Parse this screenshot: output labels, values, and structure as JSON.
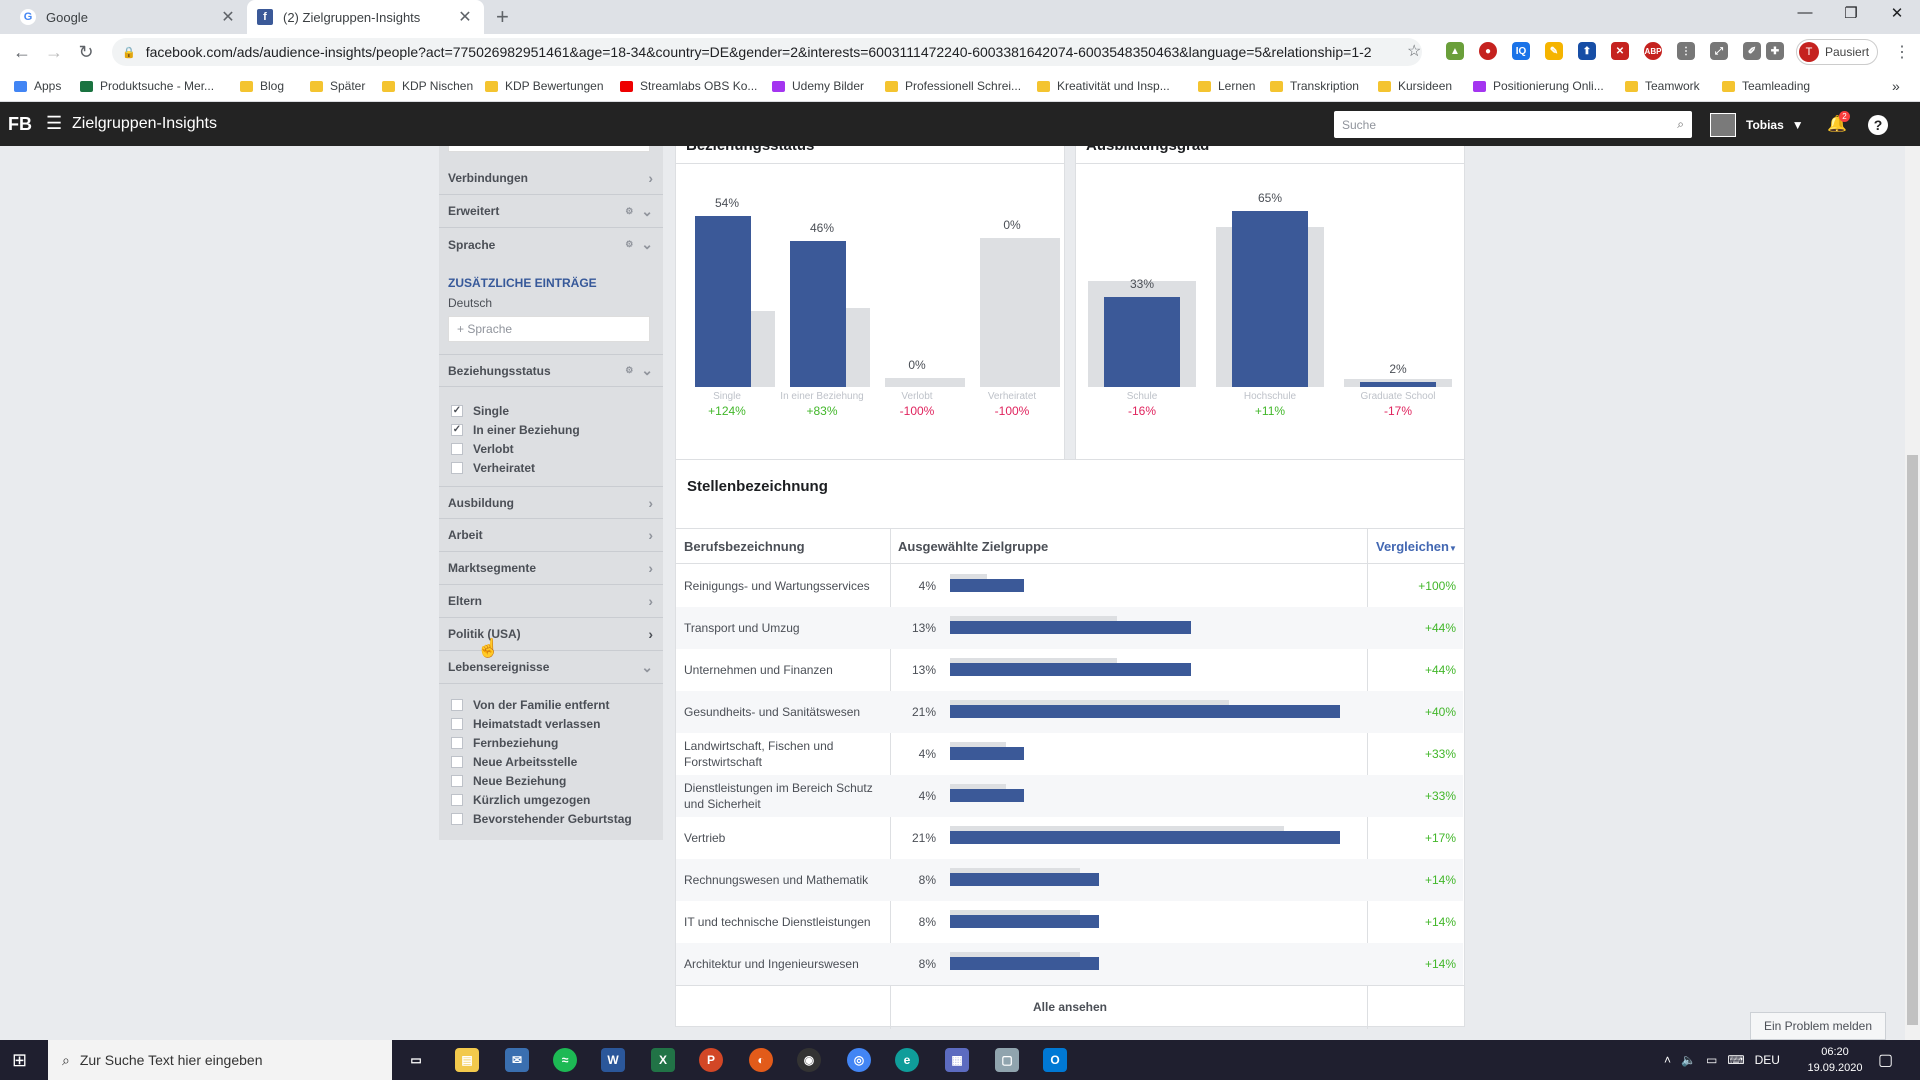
{
  "browser": {
    "tabs": [
      {
        "title": "Google",
        "fav": "G"
      },
      {
        "title": "(2) Zielgruppen-Insights",
        "fav": "f"
      }
    ],
    "url": "facebook.com/ads/audience-insights/people?act=775026982951461&age=18-34&country=DE&gender=2&interests=6003111472240-6003381642074-6003548350463&language=5&relationship=1-2",
    "profile_name": "Pausiert",
    "profile_initial": "T",
    "bookmarks": [
      "Apps",
      "Produktsuche - Mer...",
      "Blog",
      "Später",
      "KDP Nischen",
      "KDP Bewertungen",
      "Streamlabs OBS Ko...",
      "Udemy Bilder",
      "Professionell Schrei...",
      "Kreativität und Insp...",
      "Lernen",
      "Transkription",
      "Kursideen",
      "Positionierung Onli...",
      "Teamwork",
      "Teamleading"
    ]
  },
  "fb": {
    "logo": "FB",
    "title": "Zielgruppen-Insights",
    "search_placeholder": "Suche",
    "user": "Tobias",
    "notif_count": "2"
  },
  "sidebar": {
    "rows_top": [
      "Verbindungen",
      "Erweitert",
      "Sprache"
    ],
    "zusatz_title": "ZUSÄTZLICHE EINTRÄGE",
    "zusatz_value": "Deutsch",
    "zusatz_placeholder": "+ Sprache",
    "beziehung_label": "Beziehungsstatus",
    "beziehung_options": [
      {
        "label": "Single",
        "checked": true
      },
      {
        "label": "In einer Beziehung",
        "checked": true
      },
      {
        "label": "Verlobt",
        "checked": false
      },
      {
        "label": "Verheiratet",
        "checked": false
      }
    ],
    "rows_mid": [
      "Ausbildung",
      "Arbeit",
      "Marktsegmente",
      "Eltern",
      "Politik (USA)"
    ],
    "leben_label": "Lebensereignisse",
    "leben_options": [
      "Von der Familie entfernt",
      "Heimatstadt verlassen",
      "Fernbeziehung",
      "Neue Arbeitsstelle",
      "Neue Beziehung",
      "Kürzlich umgezogen",
      "Bevorstehender Geburtstag"
    ]
  },
  "chart_data": [
    {
      "type": "bar",
      "title": "Beziehungsstatus",
      "categories": [
        "Single",
        "In einer Beziehung",
        "Verlobt",
        "Verheiratet"
      ],
      "values": [
        54,
        46,
        0,
        0
      ],
      "baseline": [
        24,
        25,
        3,
        47
      ],
      "labels": [
        "54%",
        "46%",
        "0%",
        "0%"
      ],
      "index": [
        "+124%",
        "+83%",
        "-100%",
        "-100%"
      ],
      "ylim": [
        0,
        60
      ]
    },
    {
      "type": "bar",
      "title": "Ausbildungsgrad",
      "categories": [
        "Schule",
        "Hochschule",
        "Graduate School"
      ],
      "values": [
        33,
        65,
        2
      ],
      "baseline": [
        39,
        59,
        3
      ],
      "labels": [
        "33%",
        "65%",
        "2%"
      ],
      "index": [
        "-16%",
        "+11%",
        "-17%"
      ],
      "ylim": [
        0,
        70
      ]
    },
    {
      "type": "table",
      "title": "Stellenbezeichnung",
      "columns": [
        "Berufsbezeichnung",
        "Ausgewählte Zielgruppe",
        "Vergleichen"
      ],
      "rows": [
        {
          "name": "Reinigungs- und Wartungsservices",
          "pct": "4%",
          "value": 4,
          "baseline": 2,
          "index": "+100%"
        },
        {
          "name": "Transport und Umzug",
          "pct": "13%",
          "value": 13,
          "baseline": 9,
          "index": "+44%"
        },
        {
          "name": "Unternehmen und Finanzen",
          "pct": "13%",
          "value": 13,
          "baseline": 9,
          "index": "+44%"
        },
        {
          "name": "Gesundheits- und Sanitätswesen",
          "pct": "21%",
          "value": 21,
          "baseline": 15,
          "index": "+40%"
        },
        {
          "name": "Landwirtschaft, Fischen und Forstwirtschaft",
          "pct": "4%",
          "value": 4,
          "baseline": 3,
          "index": "+33%"
        },
        {
          "name": "Dienstleistungen im Bereich Schutz und Sicherheit",
          "pct": "4%",
          "value": 4,
          "baseline": 3,
          "index": "+33%"
        },
        {
          "name": "Vertrieb",
          "pct": "21%",
          "value": 21,
          "baseline": 18,
          "index": "+17%"
        },
        {
          "name": "Rechnungswesen und Mathematik",
          "pct": "8%",
          "value": 8,
          "baseline": 7,
          "index": "+14%"
        },
        {
          "name": "IT und technische Dienstleistungen",
          "pct": "8%",
          "value": 8,
          "baseline": 7,
          "index": "+14%"
        },
        {
          "name": "Architektur und Ingenieurswesen",
          "pct": "8%",
          "value": 8,
          "baseline": 7,
          "index": "+14%"
        }
      ],
      "xlim": [
        0,
        21
      ]
    }
  ],
  "table_footer": "Alle ansehen",
  "problem_button": "Ein Problem melden",
  "taskbar": {
    "search_placeholder": "Zur Suche Text hier eingeben",
    "lang": "DEU",
    "time": "06:20",
    "date": "19.09.2020"
  },
  "colors": {
    "primary": "#3b5998",
    "baseline": "#dddfe2",
    "positive": "#42b72a",
    "negative": "#e0245e"
  }
}
